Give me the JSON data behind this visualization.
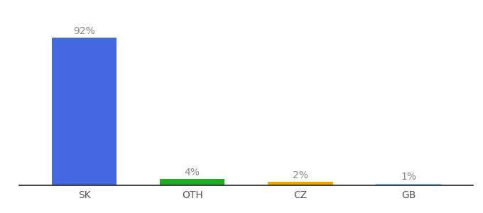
{
  "categories": [
    "SK",
    "OTH",
    "CZ",
    "GB"
  ],
  "values": [
    92,
    4,
    2,
    1
  ],
  "bar_colors": [
    "#4269e1",
    "#22ab24",
    "#f0a500",
    "#87cefa"
  ],
  "labels": [
    "92%",
    "4%",
    "2%",
    "1%"
  ],
  "ylim": [
    0,
    105
  ],
  "background_color": "#ffffff",
  "bar_width": 0.6,
  "label_fontsize": 10,
  "tick_fontsize": 10,
  "label_color": "#888888",
  "tick_color": "#555555",
  "spine_color": "#222222"
}
